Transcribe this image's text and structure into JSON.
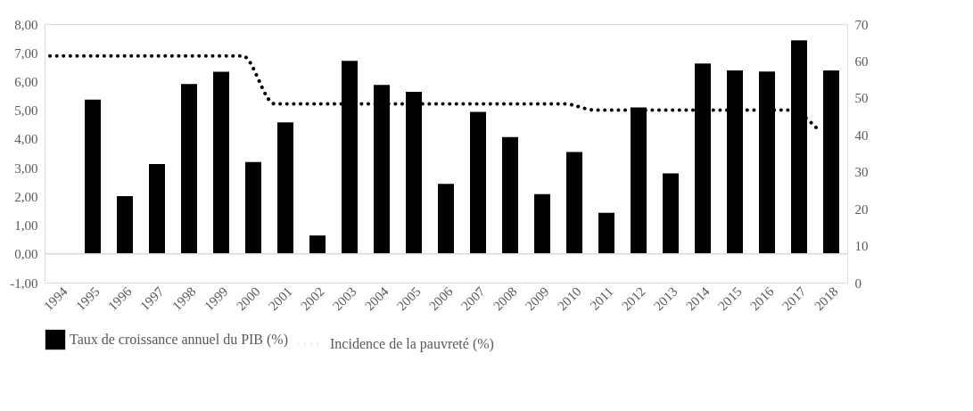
{
  "chart_data": {
    "type": "bar",
    "categories": [
      "1994",
      "1995",
      "1996",
      "1997",
      "1998",
      "1999",
      "2000",
      "2001",
      "2002",
      "2003",
      "2004",
      "2005",
      "2006",
      "2007",
      "2008",
      "2009",
      "2010",
      "2011",
      "2012",
      "2013",
      "2014",
      "2015",
      "2016",
      "2017",
      "2018"
    ],
    "series": [
      {
        "name": "Taux de croissance annuel du PIB (%)",
        "color": "#000000",
        "values": [
          null,
          5.37,
          2.01,
          3.13,
          5.91,
          6.34,
          3.2,
          4.58,
          0.64,
          6.72,
          5.88,
          5.64,
          2.44,
          4.94,
          4.07,
          2.08,
          3.55,
          1.43,
          5.1,
          2.8,
          6.63,
          6.39,
          6.35,
          7.43,
          6.39
        ]
      },
      {
        "name": "Incidence de la pauvreté (%)",
        "type": "line",
        "axis": "y2",
        "line_style": "dotted",
        "color": "#000000",
        "values": [
          61.4,
          61.4,
          61.4,
          61.4,
          61.4,
          61.4,
          61.4,
          48.4,
          48.4,
          48.4,
          48.4,
          48.4,
          48.4,
          48.4,
          48.4,
          48.4,
          48.4,
          46.7,
          46.7,
          46.7,
          46.7,
          46.7,
          46.7,
          46.7,
          40.8
        ]
      }
    ],
    "ylim": [
      -1,
      8
    ],
    "yticks": [
      {
        "value": -1,
        "label": "-1,00"
      },
      {
        "value": 0,
        "label": "0,00"
      },
      {
        "value": 1,
        "label": "1,00"
      },
      {
        "value": 2,
        "label": "2,00"
      },
      {
        "value": 3,
        "label": "3,00"
      },
      {
        "value": 4,
        "label": "4,00"
      },
      {
        "value": 5,
        "label": "5,00"
      },
      {
        "value": 6,
        "label": "6,00"
      },
      {
        "value": 7,
        "label": "7,00"
      },
      {
        "value": 8,
        "label": "8,00"
      }
    ],
    "y2lim": [
      0,
      70
    ],
    "y2ticks": [
      0,
      10,
      20,
      30,
      40,
      50,
      60,
      70
    ],
    "ref_lines": [
      {
        "axis": "y",
        "value": 0,
        "color": "#d9d9d9"
      }
    ],
    "legend": "bottom",
    "grid": false
  }
}
